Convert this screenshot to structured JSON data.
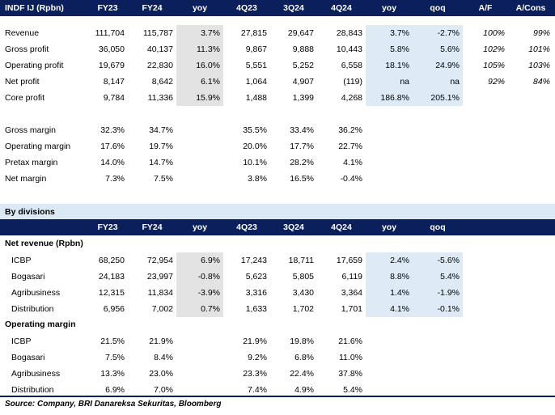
{
  "header1": {
    "title": "INDF IJ (Rpbn)",
    "cols": [
      "FY23",
      "FY24",
      "yoy",
      "4Q23",
      "3Q24",
      "4Q24",
      "yoy",
      "qoq",
      "A/F",
      "A/Cons"
    ]
  },
  "rows1": [
    {
      "label": "Revenue",
      "v": [
        "111,704",
        "115,787",
        "3.7%",
        "27,815",
        "29,647",
        "28,843",
        "3.7%",
        "-2.7%",
        "100%",
        "99%"
      ]
    },
    {
      "label": "Gross profit",
      "v": [
        "36,050",
        "40,137",
        "11.3%",
        "9,867",
        "9,888",
        "10,443",
        "5.8%",
        "5.6%",
        "102%",
        "101%"
      ]
    },
    {
      "label": "Operating profit",
      "v": [
        "19,679",
        "22,830",
        "16.0%",
        "5,551",
        "5,252",
        "6,558",
        "18.1%",
        "24.9%",
        "105%",
        "103%"
      ]
    },
    {
      "label": "Net profit",
      "v": [
        "8,147",
        "8,642",
        "6.1%",
        "1,064",
        "4,907",
        "(119)",
        "na",
        "na",
        "92%",
        "84%"
      ]
    },
    {
      "label": "Core profit",
      "v": [
        "9,784",
        "11,336",
        "15.9%",
        "1,488",
        "1,399",
        "4,268",
        "186.8%",
        "205.1%",
        "",
        ""
      ]
    }
  ],
  "margins1": [
    {
      "label": "Gross margin",
      "v": [
        "32.3%",
        "34.7%",
        "",
        "35.5%",
        "33.4%",
        "36.2%"
      ]
    },
    {
      "label": "Operating margin",
      "v": [
        "17.6%",
        "19.7%",
        "",
        "20.0%",
        "17.7%",
        "22.7%"
      ]
    },
    {
      "label": "Pretax margin",
      "v": [
        "14.0%",
        "14.7%",
        "",
        "10.1%",
        "28.2%",
        "4.1%"
      ]
    },
    {
      "label": "Net margin",
      "v": [
        "7.3%",
        "7.5%",
        "",
        "3.8%",
        "16.5%",
        "-0.4%"
      ]
    }
  ],
  "divisions_title": "By divisions",
  "header2": {
    "cols": [
      "FY23",
      "FY24",
      "yoy",
      "4Q23",
      "3Q24",
      "4Q24",
      "yoy",
      "qoq"
    ]
  },
  "net_revenue_title": "Net revenue (Rpbn)",
  "rows2": [
    {
      "label": "ICBP",
      "v": [
        "68,250",
        "72,954",
        "6.9%",
        "17,243",
        "18,711",
        "17,659",
        "2.4%",
        "-5.6%"
      ]
    },
    {
      "label": "Bogasari",
      "v": [
        "24,183",
        "23,997",
        "-0.8%",
        "5,623",
        "5,805",
        "6,119",
        "8.8%",
        "5.4%"
      ]
    },
    {
      "label": "Agribusiness",
      "v": [
        "12,315",
        "11,834",
        "-3.9%",
        "3,316",
        "3,430",
        "3,364",
        "1.4%",
        "-1.9%"
      ]
    },
    {
      "label": "Distribution",
      "v": [
        "6,956",
        "7,002",
        "0.7%",
        "1,633",
        "1,702",
        "1,701",
        "4.1%",
        "-0.1%"
      ]
    }
  ],
  "op_margin_title": "Operating margin",
  "rows3": [
    {
      "label": "ICBP",
      "v": [
        "21.5%",
        "21.9%",
        "",
        "21.9%",
        "19.8%",
        "21.6%"
      ]
    },
    {
      "label": "Bogasari",
      "v": [
        "7.5%",
        "8.4%",
        "",
        "9.2%",
        "6.8%",
        "11.0%"
      ]
    },
    {
      "label": "Agribusiness",
      "v": [
        "13.3%",
        "23.0%",
        "",
        "23.3%",
        "22.4%",
        "37.8%"
      ]
    },
    {
      "label": "Distribution",
      "v": [
        "6.9%",
        "7.0%",
        "",
        "7.4%",
        "4.9%",
        "5.4%"
      ]
    }
  ],
  "source": "Source:  Company, BRI Danareksa Sekuritas, Bloomberg"
}
